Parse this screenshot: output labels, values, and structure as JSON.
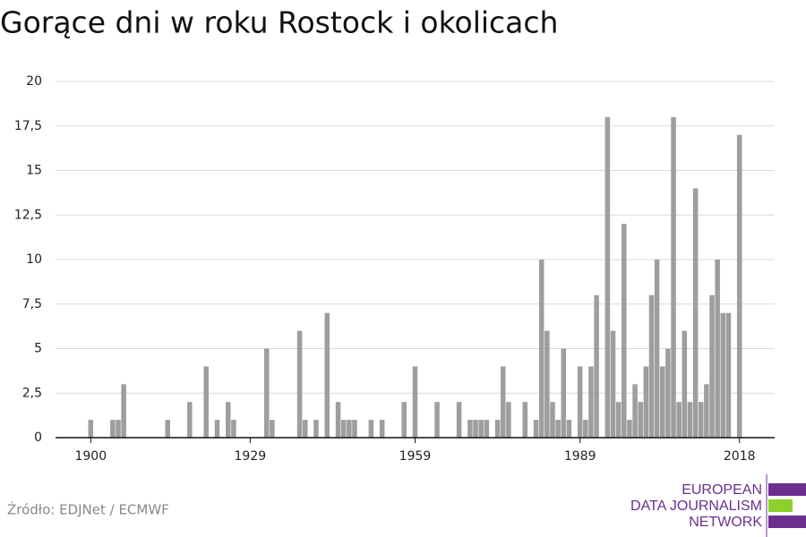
{
  "chart_data": {
    "type": "bar",
    "title": "Gorące dni w roku Rostock i okolicach",
    "source": "Źródło: EDJNet / ECMWF",
    "logo": [
      "EUROPEAN",
      "DATA JOURNALISM",
      "NETWORK"
    ],
    "color": "#9e9e9e",
    "grid": true,
    "x": [
      1900,
      1901,
      1902,
      1903,
      1904,
      1905,
      1906,
      1907,
      1908,
      1909,
      1910,
      1911,
      1912,
      1913,
      1914,
      1915,
      1916,
      1917,
      1918,
      1919,
      1920,
      1921,
      1922,
      1923,
      1924,
      1925,
      1926,
      1927,
      1928,
      1929,
      1930,
      1931,
      1932,
      1933,
      1934,
      1935,
      1936,
      1937,
      1938,
      1939,
      1940,
      1941,
      1942,
      1943,
      1944,
      1945,
      1946,
      1947,
      1948,
      1949,
      1950,
      1951,
      1952,
      1953,
      1954,
      1955,
      1956,
      1957,
      1958,
      1959,
      1960,
      1961,
      1962,
      1963,
      1964,
      1965,
      1966,
      1967,
      1968,
      1969,
      1970,
      1971,
      1972,
      1973,
      1974,
      1975,
      1976,
      1977,
      1978,
      1979,
      1980,
      1981,
      1982,
      1983,
      1984,
      1985,
      1986,
      1987,
      1988,
      1989,
      1990,
      1991,
      1992,
      1993,
      1994,
      1995,
      1996,
      1997,
      1998,
      1999,
      2000,
      2001,
      2002,
      2003,
      2004,
      2005,
      2006,
      2007,
      2008,
      2009,
      2010,
      2011,
      2012,
      2013,
      2014,
      2015,
      2016,
      2017,
      2018
    ],
    "values": [
      1,
      0,
      0,
      0,
      1,
      1,
      3,
      0,
      0,
      0,
      0,
      0,
      0,
      0,
      1,
      0,
      0,
      0,
      2,
      0,
      0,
      4,
      0,
      1,
      0,
      2,
      1,
      0,
      0,
      0,
      0,
      0,
      5,
      1,
      0,
      0,
      0,
      0,
      6,
      1,
      0,
      1,
      0,
      7,
      0,
      2,
      1,
      1,
      1,
      0,
      0,
      1,
      0,
      1,
      0,
      0,
      0,
      2,
      0,
      4,
      0,
      0,
      0,
      2,
      0,
      0,
      0,
      2,
      0,
      1,
      1,
      1,
      1,
      0,
      1,
      4,
      2,
      0,
      0,
      2,
      0,
      1,
      10,
      6,
      2,
      1,
      5,
      1,
      0,
      4,
      1,
      4,
      8,
      0,
      18,
      6,
      2,
      12,
      1,
      3,
      2,
      4,
      8,
      10,
      4,
      5,
      18,
      2,
      6,
      2,
      14,
      2,
      3,
      8,
      10,
      7,
      7,
      0,
      17
    ],
    "xlim": [
      1893.6,
      2024.4
    ],
    "xticks": [
      1900,
      1929,
      1959,
      1989,
      2018
    ],
    "ylim": [
      0,
      20
    ],
    "yticks": [
      0,
      {
        "value": 2.5,
        "label": "2,5"
      },
      5,
      {
        "value": 7.5,
        "label": "7,5"
      },
      10,
      {
        "value": 12.5,
        "label": "12,5"
      },
      15,
      {
        "value": 17.5,
        "label": "17,5"
      },
      20
    ]
  }
}
